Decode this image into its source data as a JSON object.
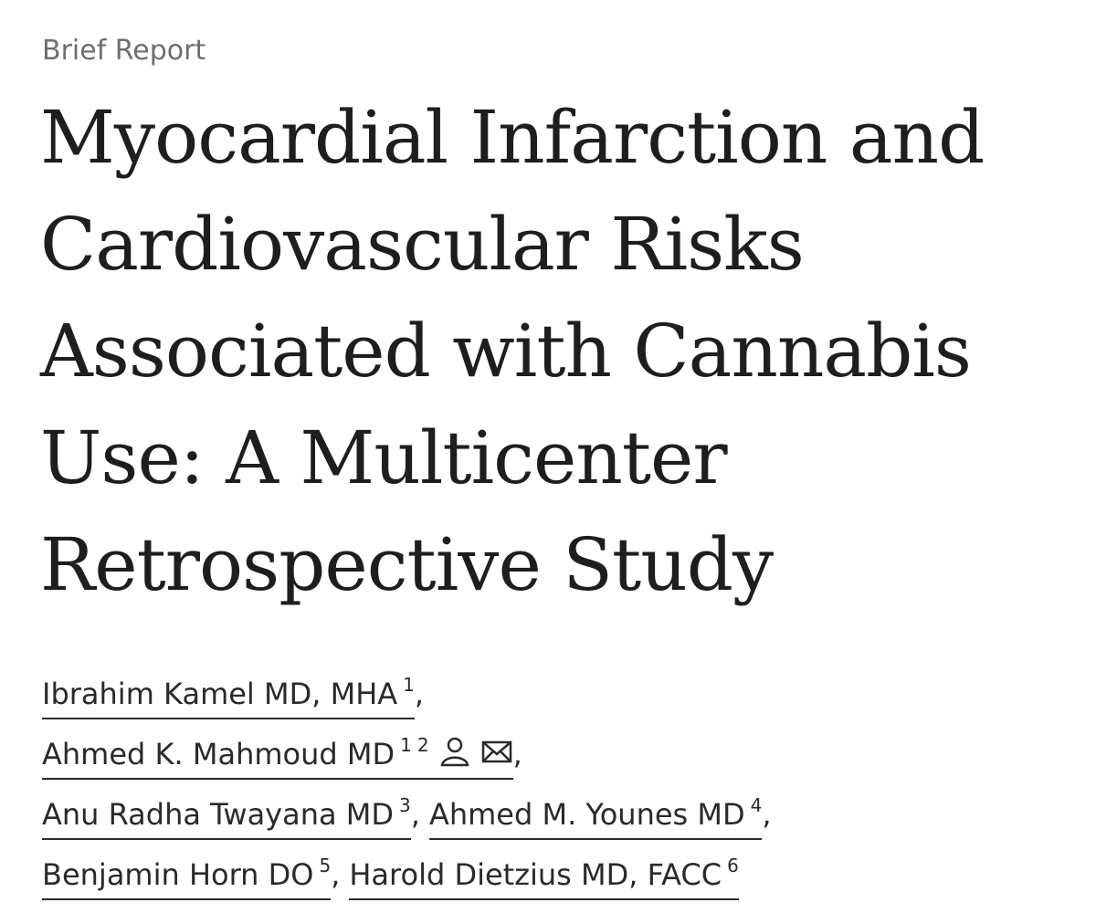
{
  "article_type": "Brief Report",
  "title_lines": [
    "Myocardial Infarction and",
    "Cardiovascular Risks",
    "Associated with Cannabis",
    "Use: A Multicenter",
    "Retrospective Study"
  ],
  "separator": ",",
  "authors": [
    {
      "name": "Ibrahim Kamel MD, MHA",
      "affiliations": [
        "1"
      ]
    },
    {
      "name": "Ahmed K. Mahmoud MD",
      "affiliations": [
        "1",
        "2"
      ]
    },
    {
      "name": "Anu Radha Twayana MD",
      "affiliations": [
        "3"
      ]
    },
    {
      "name": "Ahmed M. Younes MD",
      "affiliations": [
        "4"
      ]
    },
    {
      "name": "Benjamin Horn DO",
      "affiliations": [
        "5"
      ]
    },
    {
      "name": "Harold Dietzius MD, FACC",
      "affiliations": [
        "6"
      ]
    }
  ]
}
